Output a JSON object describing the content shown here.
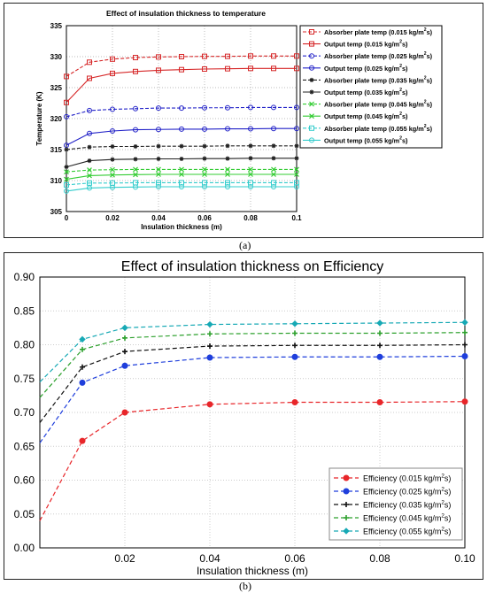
{
  "panel_labels": {
    "a": "(a)",
    "b": "(b)"
  },
  "chart_data": [
    {
      "type": "line",
      "title": "Effect of insulation thickness to temperature",
      "xlabel": "Insulation thickness (m)",
      "ylabel": "Temperature (K)",
      "xlim": [
        0,
        0.1
      ],
      "ylim": [
        305,
        335
      ],
      "x_ticks": [
        "0",
        "0.02",
        "0.04",
        "0.06",
        "0.08",
        "0.1"
      ],
      "y_ticks": [
        "305",
        "310",
        "315",
        "320",
        "325",
        "330",
        "335"
      ],
      "grid": true,
      "legend_position": "right",
      "x": [
        0,
        0.01,
        0.02,
        0.03,
        0.04,
        0.05,
        0.06,
        0.07,
        0.08,
        0.09,
        0.1
      ],
      "series": [
        {
          "name": "Absorber plate temp (0.015 kg/m",
          "name_unit": "2",
          "name_tail": "s)",
          "color": "#d62728",
          "dash": true,
          "marker": "square",
          "values": [
            326.8,
            329.1,
            329.6,
            329.85,
            329.95,
            330.0,
            330.05,
            330.05,
            330.1,
            330.1,
            330.1
          ]
        },
        {
          "name": "Output temp (0.015 kg/m",
          "name_unit": "2",
          "name_tail": "s)",
          "color": "#d62728",
          "dash": false,
          "marker": "square",
          "values": [
            322.6,
            326.5,
            327.3,
            327.6,
            327.8,
            327.9,
            328.0,
            328.05,
            328.1,
            328.1,
            328.1
          ]
        },
        {
          "name": "Absorber plate temp (0.025 kg/m",
          "name_unit": "2",
          "name_tail": "s)",
          "color": "#2222c8",
          "dash": true,
          "marker": "circle",
          "values": [
            320.3,
            321.3,
            321.5,
            321.6,
            321.7,
            321.7,
            321.75,
            321.75,
            321.8,
            321.8,
            321.8
          ]
        },
        {
          "name": "Output temp (0.025 kg/m",
          "name_unit": "2",
          "name_tail": "s)",
          "color": "#2222c8",
          "dash": false,
          "marker": "circle",
          "values": [
            315.7,
            317.6,
            318.0,
            318.2,
            318.25,
            318.3,
            318.3,
            318.35,
            318.35,
            318.4,
            318.4
          ]
        },
        {
          "name": "Absorber plate temp (0.035 kg/m",
          "name_unit": "2",
          "name_tail": "s)",
          "color": "#222222",
          "dash": true,
          "marker": "star",
          "values": [
            315.0,
            315.4,
            315.5,
            315.5,
            315.55,
            315.55,
            315.55,
            315.6,
            315.6,
            315.6,
            315.6
          ]
        },
        {
          "name": "Output temp (0.035 kg/m",
          "name_unit": "2",
          "name_tail": "s)",
          "color": "#222222",
          "dash": false,
          "marker": "star",
          "values": [
            312.2,
            313.2,
            313.4,
            313.45,
            313.5,
            313.5,
            313.55,
            313.55,
            313.6,
            313.6,
            313.6
          ]
        },
        {
          "name": "Absorber plate temp (0.045 kg/m",
          "name_unit": "2",
          "name_tail": "s)",
          "color": "#33cc33",
          "dash": true,
          "marker": "x",
          "values": [
            311.4,
            311.7,
            311.75,
            311.8,
            311.8,
            311.8,
            311.8,
            311.8,
            311.8,
            311.8,
            311.8
          ]
        },
        {
          "name": "Output temp (0.045 kg/m",
          "name_unit": "2",
          "name_tail": "s)",
          "color": "#33cc33",
          "dash": false,
          "marker": "x",
          "values": [
            310.2,
            310.8,
            310.9,
            310.95,
            311.0,
            311.0,
            311.0,
            311.0,
            311.0,
            311.0,
            311.0
          ]
        },
        {
          "name": "Absorber plate temp (0.055 kg/m",
          "name_unit": "2",
          "name_tail": "s)",
          "color": "#33cccc",
          "dash": true,
          "marker": "square",
          "values": [
            309.3,
            309.6,
            309.6,
            309.65,
            309.65,
            309.65,
            309.65,
            309.65,
            309.65,
            309.65,
            309.65
          ]
        },
        {
          "name": "Output temp (0.055 kg/m",
          "name_unit": "2",
          "name_tail": "s)",
          "color": "#33cccc",
          "dash": false,
          "marker": "circle",
          "values": [
            308.3,
            308.8,
            308.9,
            308.95,
            309.0,
            309.0,
            309.0,
            309.0,
            309.0,
            309.0,
            309.0
          ]
        }
      ]
    },
    {
      "type": "line",
      "title": "Effect of insulation thickness on Efficiency",
      "xlabel": "Insulation thickness (m)",
      "ylabel": "",
      "xlim": [
        0,
        0.1
      ],
      "y_ticks": [
        "0.90",
        "0.85",
        "0.80",
        "0.75",
        "0.70",
        "0.65",
        "0.60",
        "0.05",
        "0.00"
      ],
      "x_ticks": [
        "0.02",
        "0.04",
        "0.06",
        "0.08",
        "0.10"
      ],
      "grid": true,
      "legend_position": "bottom-right",
      "x": [
        0,
        0.01,
        0.02,
        0.04,
        0.06,
        0.08,
        0.1
      ],
      "series": [
        {
          "name": "Efficiency (0.015 kg/m",
          "name_unit": "2",
          "name_tail": "s)",
          "color": "#e8262a",
          "marker": "circle",
          "values": [
            0.04,
            0.658,
            0.7,
            0.712,
            0.715,
            0.715,
            0.716
          ]
        },
        {
          "name": "Efficiency (0.025 kg/m",
          "name_unit": "2",
          "name_tail": "s)",
          "color": "#1f3fdc",
          "marker": "circle",
          "values": [
            0.655,
            0.744,
            0.769,
            0.781,
            0.782,
            0.782,
            0.783
          ]
        },
        {
          "name": "Efficiency (0.035 kg/m",
          "name_unit": "2",
          "name_tail": "s)",
          "color": "#111111",
          "marker": "plus",
          "values": [
            0.685,
            0.767,
            0.79,
            0.798,
            0.799,
            0.799,
            0.8
          ]
        },
        {
          "name": "Efficiency (0.045 kg/m",
          "name_unit": "2",
          "name_tail": "s)",
          "color": "#2ca02c",
          "marker": "plus",
          "values": [
            0.722,
            0.793,
            0.81,
            0.816,
            0.817,
            0.817,
            0.818
          ]
        },
        {
          "name": "Efficiency (0.055 kg/m",
          "name_unit": "2",
          "name_tail": "s)",
          "color": "#17a9b5",
          "marker": "diamond",
          "values": [
            0.745,
            0.808,
            0.825,
            0.83,
            0.831,
            0.832,
            0.833
          ]
        }
      ]
    }
  ]
}
